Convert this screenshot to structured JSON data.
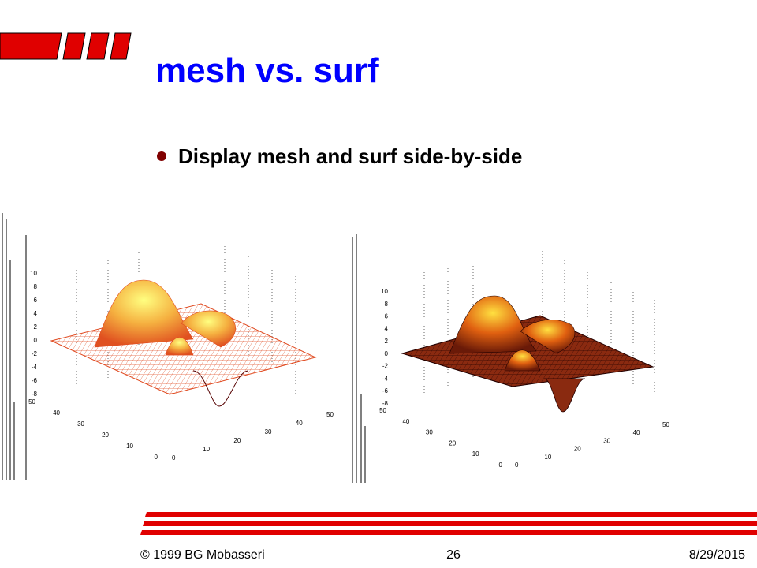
{
  "title": "mesh vs. surf",
  "bullets": [
    "Display mesh and surf side-by-side"
  ],
  "plots": [
    {
      "zticks": [
        "10",
        "8",
        "6",
        "4",
        "2",
        "0",
        "-2",
        "-4",
        "-6",
        "-8"
      ],
      "yticks": [
        "50",
        "40",
        "30",
        "20",
        "10",
        "0"
      ],
      "xticks": [
        "0",
        "10",
        "20",
        "30",
        "40",
        "50"
      ]
    },
    {
      "zticks": [
        "10",
        "8",
        "6",
        "4",
        "2",
        "0",
        "-2",
        "-4",
        "-6",
        "-8"
      ],
      "yticks": [
        "50",
        "40",
        "30",
        "20",
        "10",
        "0"
      ],
      "xticks": [
        "0",
        "10",
        "20",
        "30",
        "40",
        "50"
      ]
    }
  ],
  "footer": {
    "left": "© 1999 BG Mobasseri",
    "center": "26",
    "right": "8/29/2015"
  }
}
